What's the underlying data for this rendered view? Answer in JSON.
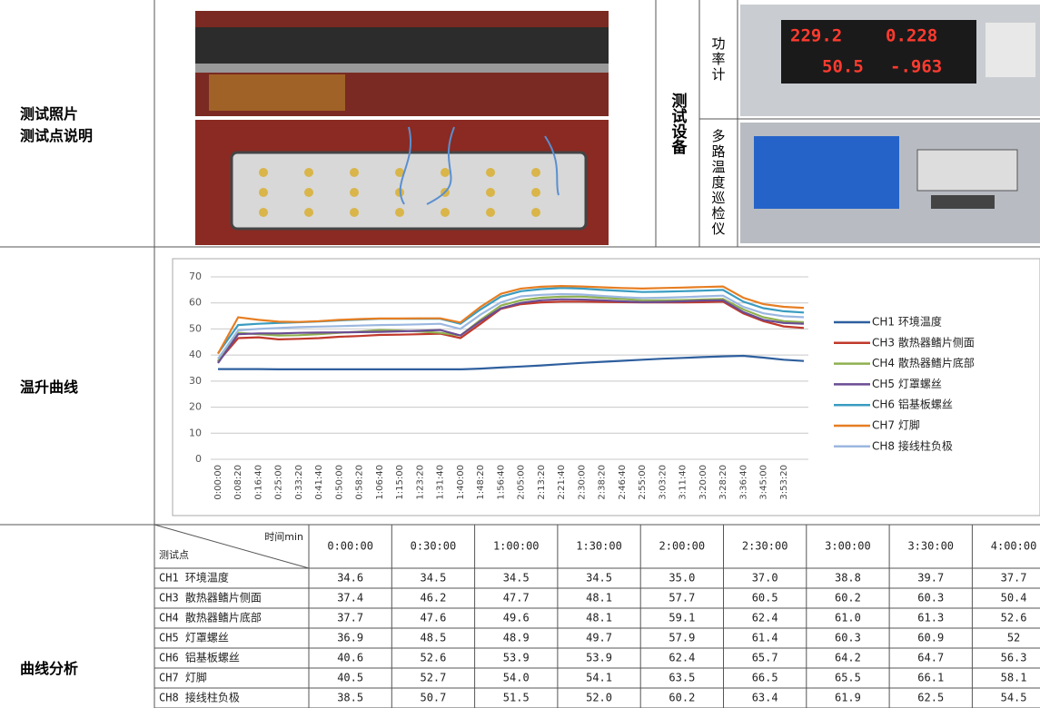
{
  "photos_label": [
    "测试照片",
    "测试点说明"
  ],
  "equipment": {
    "label": "测试设备",
    "items": [
      {
        "name": "功率计",
        "readings": [
          "229.2",
          "0.228",
          "50.5",
          "-.963"
        ]
      },
      {
        "name": "多路温度巡检仪"
      }
    ]
  },
  "curve_label": "温升曲线",
  "analysis_label": "曲线分析",
  "chart_data": {
    "type": "line",
    "categories": [
      "0:00:00",
      "0:08:20",
      "0:16:40",
      "0:25:00",
      "0:33:20",
      "0:41:40",
      "0:50:00",
      "0:58:20",
      "1:06:40",
      "1:15:00",
      "1:23:20",
      "1:31:40",
      "1:40:00",
      "1:48:20",
      "1:56:40",
      "2:05:00",
      "2:13:20",
      "2:21:40",
      "2:30:00",
      "2:38:20",
      "2:46:40",
      "2:55:00",
      "3:03:20",
      "3:11:40",
      "3:20:00",
      "3:28:20",
      "3:36:40",
      "3:45:00",
      "3:53:20",
      null
    ],
    "ylim": [
      0,
      70
    ],
    "yticks": [
      0,
      10,
      20,
      30,
      40,
      50,
      60,
      70
    ],
    "grid": true,
    "legend": "right",
    "series": [
      {
        "name": "CH1 环境温度",
        "color": "#2e5f9e",
        "values": [
          34.6,
          34.6,
          34.6,
          34.5,
          34.5,
          34.5,
          34.5,
          34.5,
          34.5,
          34.5,
          34.5,
          34.5,
          34.5,
          34.8,
          35.2,
          35.6,
          36.0,
          36.5,
          37.0,
          37.4,
          37.8,
          38.2,
          38.6,
          38.9,
          39.2,
          39.5,
          39.7,
          39.0,
          38.2,
          37.7
        ]
      },
      {
        "name": "CH3 散热器鳍片侧面",
        "color": "#c0392b",
        "values": [
          37.4,
          46.5,
          46.8,
          46.0,
          46.2,
          46.5,
          47.0,
          47.3,
          47.7,
          47.8,
          48.0,
          48.2,
          46.5,
          52.0,
          57.7,
          59.5,
          60.2,
          60.5,
          60.5,
          60.4,
          60.3,
          60.2,
          60.2,
          60.2,
          60.3,
          60.5,
          56.0,
          53.0,
          51.0,
          50.4
        ]
      },
      {
        "name": "CH4 散热器鳍片底部",
        "color": "#8fb04f",
        "values": [
          37.7,
          48.5,
          48.0,
          47.5,
          47.6,
          48.0,
          48.5,
          49.0,
          49.6,
          49.4,
          49.0,
          48.5,
          47.5,
          53.5,
          59.0,
          61.0,
          62.0,
          62.4,
          62.4,
          62.0,
          61.5,
          61.0,
          61.0,
          61.1,
          61.3,
          61.5,
          57.5,
          54.5,
          53.0,
          52.6
        ]
      },
      {
        "name": "CH5 灯罩螺丝",
        "color": "#6a4c93",
        "values": [
          36.9,
          48.0,
          48.3,
          48.3,
          48.5,
          48.6,
          48.7,
          48.8,
          48.9,
          49.1,
          49.3,
          49.6,
          47.5,
          53.0,
          57.9,
          60.0,
          61.0,
          61.4,
          61.3,
          61.0,
          60.6,
          60.3,
          60.4,
          60.6,
          60.9,
          61.0,
          56.5,
          53.5,
          52.3,
          52.0
        ]
      },
      {
        "name": "CH6 铝基板螺丝",
        "color": "#3a9cc0",
        "values": [
          40.6,
          51.5,
          52.0,
          52.3,
          52.6,
          52.9,
          53.3,
          53.6,
          53.9,
          53.9,
          53.9,
          53.9,
          52.0,
          57.5,
          62.4,
          64.5,
          65.3,
          65.7,
          65.5,
          65.0,
          64.6,
          64.2,
          64.3,
          64.5,
          64.7,
          65.0,
          60.5,
          58.0,
          56.8,
          56.3
        ]
      },
      {
        "name": "CH7 灯脚",
        "color": "#e67e22",
        "values": [
          40.5,
          54.5,
          53.5,
          52.8,
          52.7,
          53.0,
          53.5,
          53.8,
          54.0,
          54.0,
          54.1,
          54.1,
          52.5,
          58.5,
          63.5,
          65.5,
          66.2,
          66.5,
          66.3,
          66.0,
          65.7,
          65.5,
          65.7,
          65.9,
          66.1,
          66.3,
          62.0,
          59.5,
          58.5,
          58.1
        ]
      },
      {
        "name": "CH8 接线柱负极",
        "color": "#9bb7e0",
        "values": [
          38.5,
          49.5,
          50.0,
          50.4,
          50.7,
          50.9,
          51.1,
          51.3,
          51.5,
          51.6,
          51.8,
          52.0,
          50.0,
          55.5,
          60.2,
          62.5,
          63.1,
          63.4,
          63.2,
          62.7,
          62.2,
          61.9,
          62.0,
          62.2,
          62.5,
          62.8,
          58.5,
          56.0,
          54.9,
          54.5
        ]
      }
    ]
  },
  "table": {
    "corner_top": "时间min",
    "corner_bottom": "测试点",
    "columns": [
      "0:00:00",
      "0:30:00",
      "1:00:00",
      "1:30:00",
      "2:00:00",
      "2:30:00",
      "3:00:00",
      "3:30:00",
      "4:00:00"
    ],
    "rows": [
      [
        "CH1 环境温度",
        "34.6",
        "34.5",
        "34.5",
        "34.5",
        "35.0",
        "37.0",
        "38.8",
        "39.7",
        "37.7"
      ],
      [
        "CH3 散热器鳍片侧面",
        "37.4",
        "46.2",
        "47.7",
        "48.1",
        "57.7",
        "60.5",
        "60.2",
        "60.3",
        "50.4"
      ],
      [
        "CH4 散热器鳍片底部",
        "37.7",
        "47.6",
        "49.6",
        "48.1",
        "59.1",
        "62.4",
        "61.0",
        "61.3",
        "52.6"
      ],
      [
        "CH5 灯罩螺丝",
        "36.9",
        "48.5",
        "48.9",
        "49.7",
        "57.9",
        "61.4",
        "60.3",
        "60.9",
        "52"
      ],
      [
        "CH6 铝基板螺丝",
        "40.6",
        "52.6",
        "53.9",
        "53.9",
        "62.4",
        "65.7",
        "64.2",
        "64.7",
        "56.3"
      ],
      [
        "CH7 灯脚",
        "40.5",
        "52.7",
        "54.0",
        "54.1",
        "63.5",
        "66.5",
        "65.5",
        "66.1",
        "58.1"
      ],
      [
        "CH8 接线柱负极",
        "38.5",
        "50.7",
        "51.5",
        "52.0",
        "60.2",
        "63.4",
        "61.9",
        "62.5",
        "54.5"
      ]
    ]
  }
}
